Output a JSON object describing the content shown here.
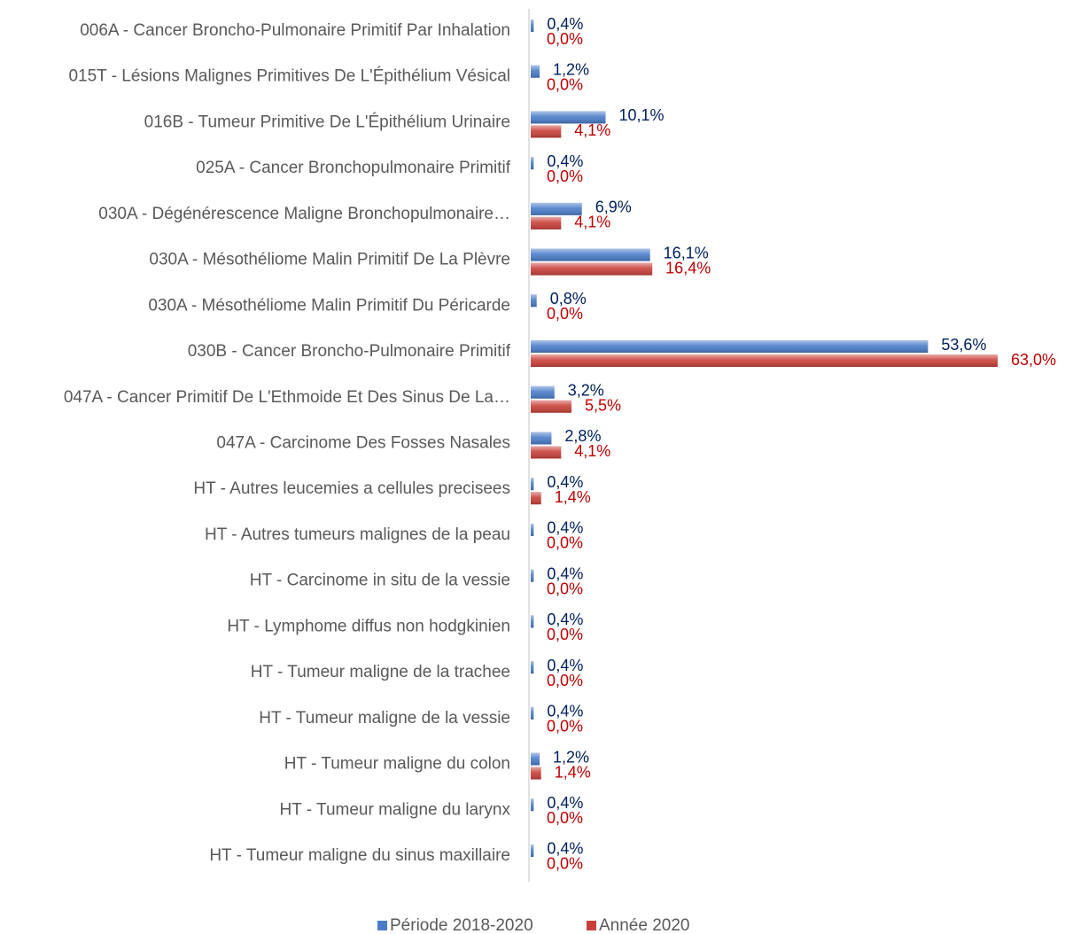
{
  "chart_data": {
    "type": "bar",
    "orientation": "horizontal",
    "categories": [
      "006A - Cancer Broncho-Pulmonaire Primitif Par Inhalation",
      "015T - Lésions Malignes Primitives De L'Épithélium Vésical",
      "016B - Tumeur Primitive De L'Épithélium Urinaire",
      "025A - Cancer Bronchopulmonaire Primitif",
      "030A - Dégénérescence Maligne Bronchopulmonaire…",
      "030A - Mésothéliome Malin Primitif De La Plèvre",
      "030A - Mésothéliome Malin Primitif Du Péricarde",
      "030B - Cancer Broncho-Pulmonaire Primitif",
      "047A - Cancer Primitif De L'Ethmoide Et Des Sinus De La…",
      "047A - Carcinome Des Fosses Nasales",
      "HT - Autres leucemies a cellules precisees",
      "HT - Autres tumeurs malignes de la peau",
      "HT - Carcinome in situ de la vessie",
      "HT - Lymphome diffus non hodgkinien",
      "HT - Tumeur maligne de la trachee",
      "HT - Tumeur maligne de la vessie",
      "HT - Tumeur maligne du colon",
      "HT - Tumeur maligne du larynx",
      "HT - Tumeur maligne du sinus maxillaire"
    ],
    "series": [
      {
        "name": "Période 2018-2020",
        "color": "#4a7cc9",
        "label_color": "#002060",
        "values": [
          0.4,
          1.2,
          10.1,
          0.4,
          6.9,
          16.1,
          0.8,
          53.6,
          3.2,
          2.8,
          0.4,
          0.4,
          0.4,
          0.4,
          0.4,
          0.4,
          1.2,
          0.4,
          0.4
        ],
        "value_labels": [
          "0,4%",
          "1,2%",
          "10,1%",
          "0,4%",
          "6,9%",
          "16,1%",
          "0,8%",
          "53,6%",
          "3,2%",
          "2,8%",
          "0,4%",
          "0,4%",
          "0,4%",
          "0,4%",
          "0,4%",
          "0,4%",
          "1,2%",
          "0,4%",
          "0,4%"
        ]
      },
      {
        "name": "Année 2020",
        "color": "#c9403a",
        "label_color": "#c00000",
        "values": [
          0,
          0,
          4.1,
          0,
          4.1,
          16.4,
          0,
          63.0,
          5.5,
          4.1,
          1.4,
          0,
          0,
          0,
          0,
          0,
          1.4,
          0,
          0
        ],
        "value_labels": [
          "0,0%",
          "0,0%",
          "4,1%",
          "0,0%",
          "4,1%",
          "16,4%",
          "0,0%",
          "63,0%",
          "5,5%",
          "4,1%",
          "1,4%",
          "0,0%",
          "0,0%",
          "0,0%",
          "0,0%",
          "0,0%",
          "1,4%",
          "0,0%",
          "0,0%"
        ]
      }
    ],
    "legend": "bottom"
  }
}
